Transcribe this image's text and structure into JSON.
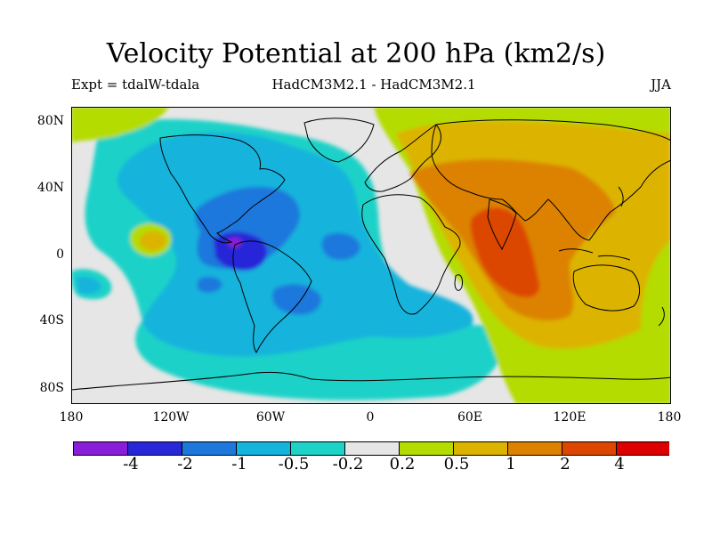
{
  "title": "Velocity Potential at 200 hPa (km2/s)",
  "subtitle_left": "Expt = tdalW-tdala",
  "subtitle_center": "HadCM3M2.1 - HadCM3M2.1",
  "subtitle_right": "JJA",
  "lat_labels": [
    "80N",
    "40N",
    "0",
    "40S",
    "80S"
  ],
  "lon_labels": [
    "180",
    "120W",
    "60W",
    "0",
    "60E",
    "120E",
    "180"
  ],
  "colorbar": {
    "colors": [
      "#8a1ed8",
      "#2828d8",
      "#1e78dc",
      "#14b4dc",
      "#1ed2c8",
      "#e6e6e6",
      "#b4dc00",
      "#dcb400",
      "#dc8200",
      "#dc4600",
      "#dc0000"
    ],
    "tick_labels": [
      "-4",
      "-2",
      "-1",
      "-0.5",
      "-0.2",
      "0.2",
      "0.5",
      "1",
      "2",
      "4"
    ]
  },
  "map": {
    "extent": {
      "lon": [
        -180,
        180
      ],
      "lat": [
        -90,
        90
      ]
    },
    "background_level": "0.2 to -0.2"
  }
}
